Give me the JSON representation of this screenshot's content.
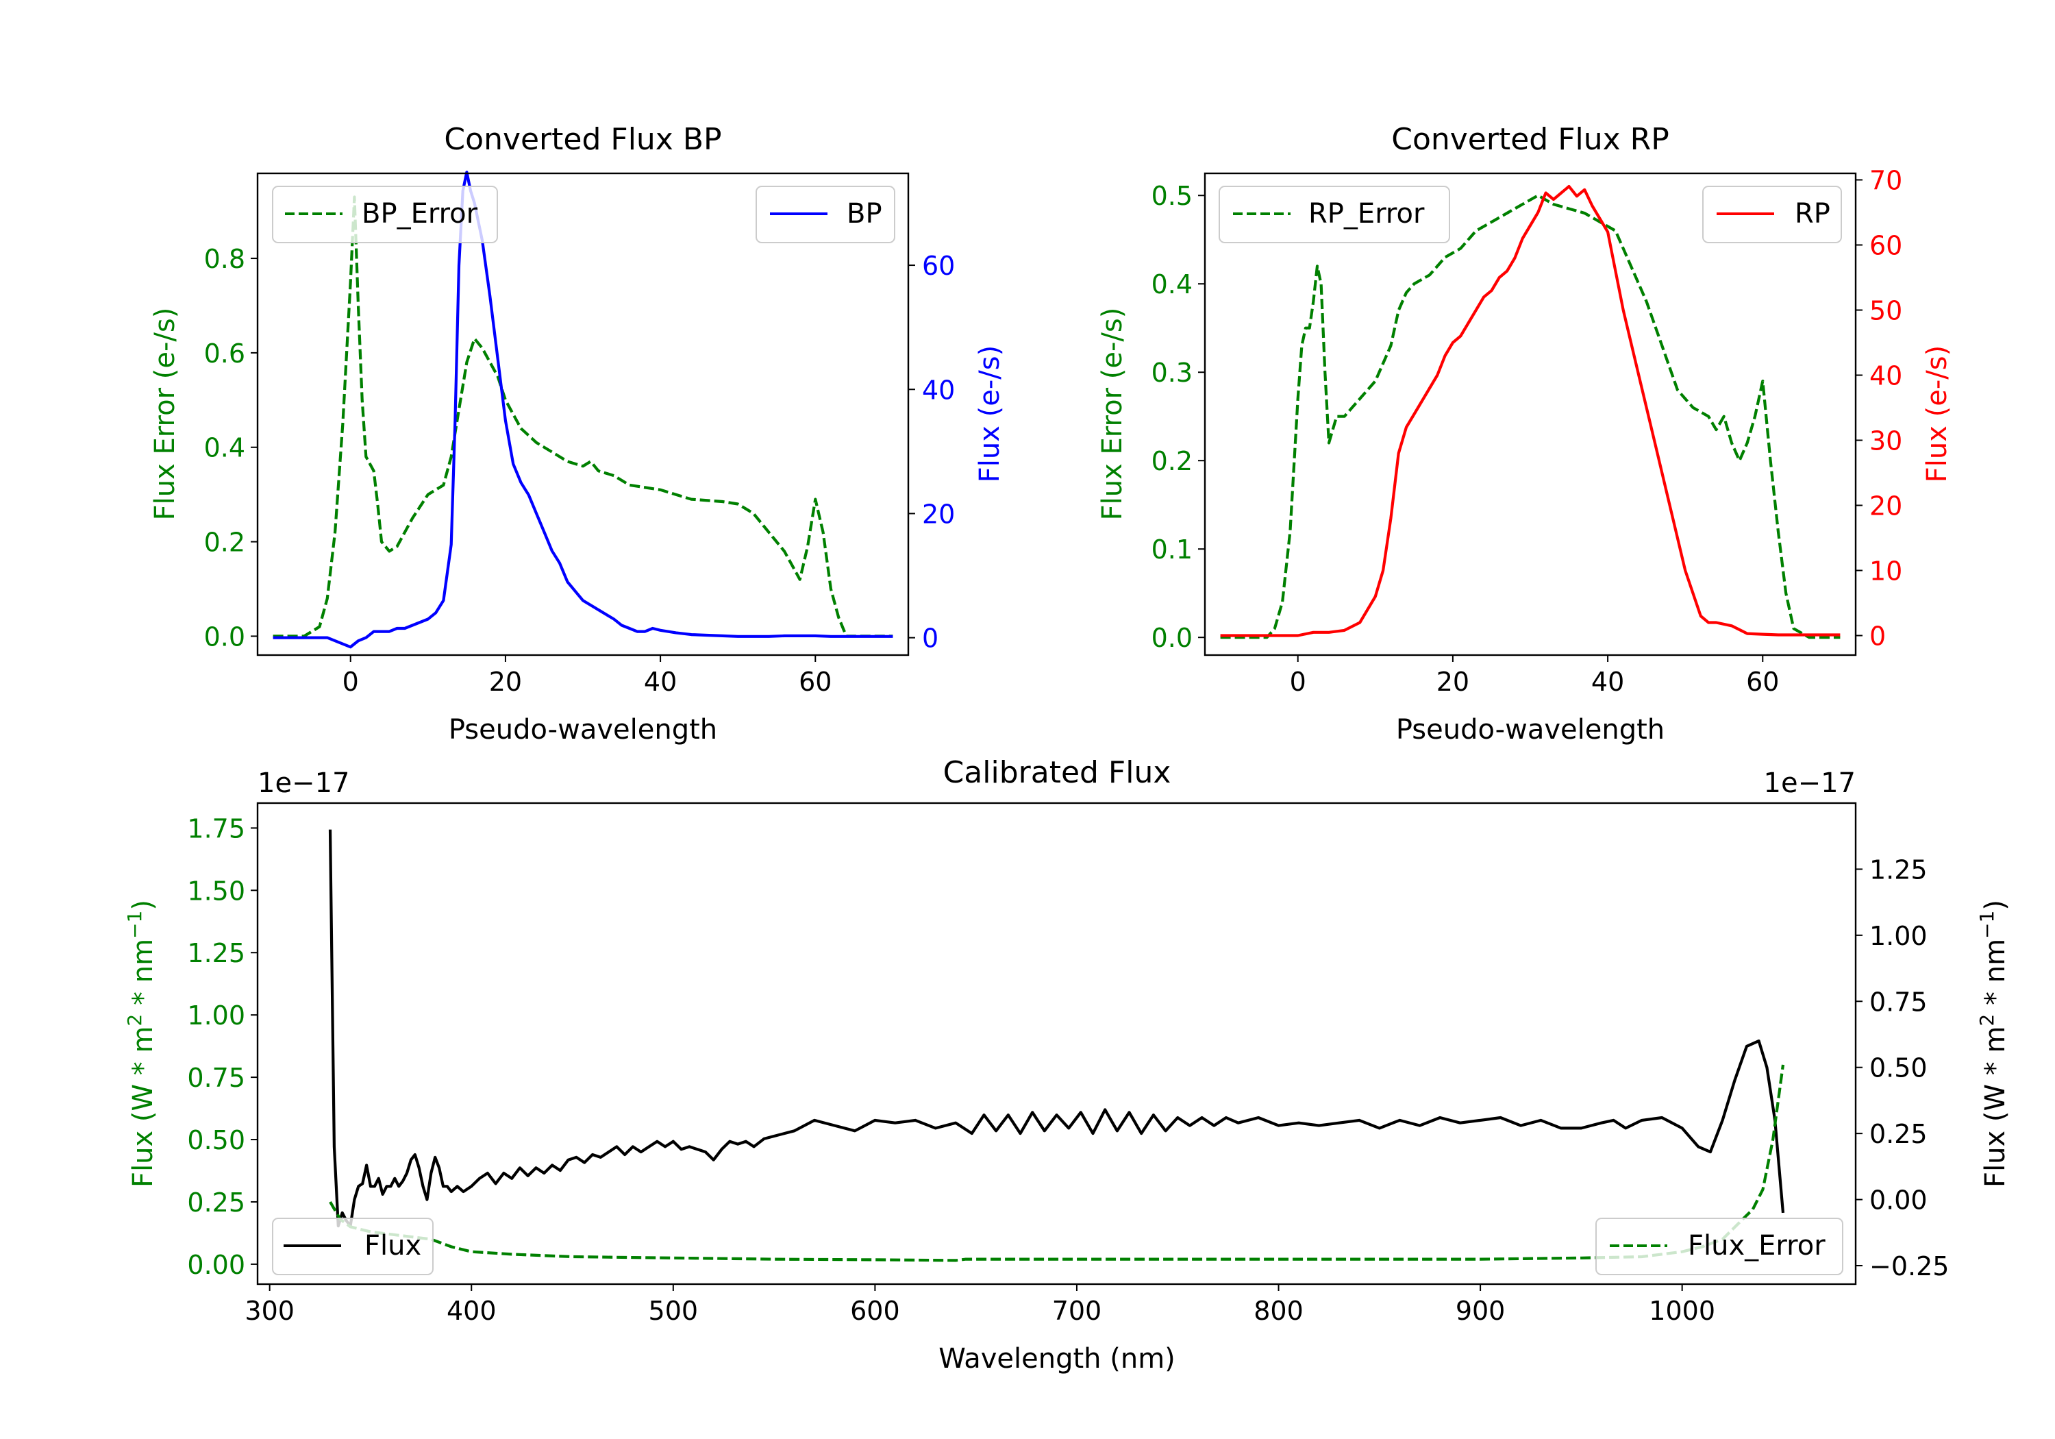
{
  "colors": {
    "bp": "#0000ff",
    "rp": "#ff0000",
    "error": "#008000",
    "flux": "#000000",
    "axis": "#000000",
    "legend_border": "#cccccc"
  },
  "chart_data": [
    {
      "id": "bp",
      "type": "line",
      "title": "Converted Flux BP",
      "xlabel": "Pseudo-wavelength",
      "xlim": [
        -12,
        72
      ],
      "xticks": [
        0,
        20,
        40,
        60
      ],
      "y_left": {
        "label": "Flux Error (e-/s)",
        "lim": [
          -0.04,
          0.98
        ],
        "ticks": [
          0.0,
          0.2,
          0.4,
          0.6,
          0.8
        ],
        "decimals": 1,
        "color": "#008000"
      },
      "y_right": {
        "label": "Flux (e-/s)",
        "lim": [
          -2.8,
          74.8
        ],
        "ticks": [
          0,
          20,
          40,
          60
        ],
        "decimals": 0,
        "color": "#0000ff"
      },
      "series": [
        {
          "name": "BP_Error",
          "axis": "left",
          "style": "dashed",
          "color": "#008000",
          "x": [
            -10,
            -8,
            -6,
            -4,
            -3,
            -2,
            -1,
            0,
            0.5,
            1,
            1.5,
            2,
            3,
            3.5,
            4,
            5,
            6,
            7,
            8,
            10,
            12,
            13,
            14,
            15,
            16,
            17,
            18,
            19,
            20,
            21,
            22,
            24,
            26,
            28,
            30,
            31,
            32,
            34,
            36,
            40,
            44,
            48,
            50,
            52,
            54,
            56,
            57,
            58,
            59,
            60,
            61,
            62,
            63,
            64,
            66,
            68,
            70
          ],
          "values": [
            0,
            0,
            0,
            0.02,
            0.08,
            0.22,
            0.45,
            0.75,
            0.93,
            0.7,
            0.5,
            0.38,
            0.35,
            0.28,
            0.2,
            0.18,
            0.19,
            0.22,
            0.25,
            0.3,
            0.32,
            0.38,
            0.48,
            0.58,
            0.63,
            0.61,
            0.58,
            0.55,
            0.5,
            0.47,
            0.44,
            0.41,
            0.39,
            0.37,
            0.36,
            0.37,
            0.35,
            0.34,
            0.32,
            0.31,
            0.29,
            0.285,
            0.28,
            0.26,
            0.22,
            0.18,
            0.15,
            0.12,
            0.19,
            0.29,
            0.22,
            0.1,
            0.04,
            0,
            0,
            0,
            0
          ]
        },
        {
          "name": "BP",
          "axis": "right",
          "style": "solid",
          "color": "#0000ff",
          "x": [
            -10,
            -6,
            -3,
            -1,
            0,
            1,
            2,
            3,
            4,
            5,
            6,
            7,
            8,
            9,
            10,
            11,
            12,
            13,
            13.5,
            14,
            14.5,
            15,
            15.5,
            16,
            17,
            18,
            19,
            20,
            21,
            22,
            23,
            24,
            25,
            26,
            27,
            28,
            30,
            32,
            34,
            35,
            36,
            37,
            38,
            39,
            40,
            42,
            44,
            46,
            48,
            50,
            52,
            54,
            56,
            58,
            60,
            62,
            64,
            66,
            68,
            70
          ],
          "values": [
            0,
            0,
            0,
            -1,
            -1.5,
            -0.5,
            0,
            1,
            1,
            1,
            1.5,
            1.5,
            2,
            2.5,
            3,
            4,
            6,
            15,
            35,
            60,
            72,
            75,
            72,
            70,
            64,
            55,
            45,
            35,
            28,
            25,
            23,
            20,
            17,
            14,
            12,
            9,
            6,
            4.5,
            3,
            2,
            1.5,
            1,
            1,
            1.5,
            1.2,
            0.8,
            0.5,
            0.4,
            0.3,
            0.2,
            0.2,
            0.2,
            0.3,
            0.3,
            0.3,
            0.2,
            0.2,
            0.2,
            0.2,
            0.2
          ]
        }
      ]
    },
    {
      "id": "rp",
      "type": "line",
      "title": "Converted Flux RP",
      "xlabel": "Pseudo-wavelength",
      "xlim": [
        -12,
        72
      ],
      "xticks": [
        0,
        20,
        40,
        60
      ],
      "y_left": {
        "label": "Flux Error (e-/s)",
        "lim": [
          -0.02,
          0.525
        ],
        "ticks": [
          0.0,
          0.1,
          0.2,
          0.3,
          0.4,
          0.5
        ],
        "decimals": 1,
        "color": "#008000"
      },
      "y_right": {
        "label": "Flux (e-/s)",
        "lim": [
          -3,
          71
        ],
        "ticks": [
          0,
          10,
          20,
          30,
          40,
          50,
          60,
          70
        ],
        "decimals": 0,
        "color": "#ff0000"
      },
      "series": [
        {
          "name": "RP_Error",
          "axis": "left",
          "style": "dashed",
          "color": "#008000",
          "x": [
            -10,
            -6,
            -4,
            -3,
            -2,
            -1,
            0,
            0.5,
            1,
            1.5,
            2,
            2.5,
            3,
            3.5,
            4,
            5,
            6,
            7,
            8,
            10,
            12,
            13,
            14,
            15,
            17,
            19,
            21,
            23,
            25,
            27,
            29,
            31,
            32,
            33,
            35,
            37,
            39,
            41,
            43,
            45,
            47,
            49,
            51,
            53,
            54,
            55,
            56,
            57,
            58,
            59,
            60,
            61,
            62,
            63,
            64,
            66,
            70
          ],
          "values": [
            0,
            0,
            0,
            0.01,
            0.04,
            0.12,
            0.27,
            0.33,
            0.35,
            0.35,
            0.38,
            0.42,
            0.4,
            0.3,
            0.22,
            0.25,
            0.25,
            0.26,
            0.27,
            0.29,
            0.33,
            0.37,
            0.39,
            0.4,
            0.41,
            0.43,
            0.44,
            0.46,
            0.47,
            0.48,
            0.49,
            0.5,
            0.495,
            0.49,
            0.485,
            0.48,
            0.47,
            0.46,
            0.42,
            0.38,
            0.33,
            0.28,
            0.26,
            0.25,
            0.235,
            0.25,
            0.22,
            0.2,
            0.22,
            0.25,
            0.29,
            0.2,
            0.12,
            0.05,
            0.01,
            0,
            0
          ]
        },
        {
          "name": "RP",
          "axis": "right",
          "style": "solid",
          "color": "#ff0000",
          "x": [
            -10,
            -6,
            -2,
            0,
            2,
            4,
            6,
            8,
            10,
            11,
            12,
            13,
            14,
            15,
            16,
            17,
            18,
            19,
            20,
            21,
            22,
            23,
            24,
            25,
            26,
            27,
            28,
            29,
            30,
            31,
            32,
            33,
            34,
            35,
            36,
            37,
            38,
            39,
            40,
            41,
            42,
            44,
            46,
            48,
            50,
            52,
            53,
            54,
            56,
            58,
            60,
            62,
            64,
            66,
            68,
            70
          ],
          "values": [
            0,
            0,
            0,
            0,
            0.5,
            0.5,
            0.8,
            2,
            6,
            10,
            18,
            28,
            32,
            34,
            36,
            38,
            40,
            43,
            45,
            46,
            48,
            50,
            52,
            53,
            55,
            56,
            58,
            61,
            63,
            65,
            68,
            67,
            68,
            69,
            67.5,
            68.5,
            66,
            64,
            62,
            56,
            50,
            40,
            30,
            20,
            10,
            3,
            2,
            2,
            1.5,
            0.3,
            0.2,
            0.1,
            0.1,
            0.1,
            0.1,
            0.1
          ]
        }
      ]
    },
    {
      "id": "cal",
      "type": "line",
      "title": "Calibrated Flux",
      "xlabel": "Wavelength (nm)",
      "xlim": [
        294,
        1086
      ],
      "xticks": [
        300,
        400,
        500,
        600,
        700,
        800,
        900,
        1000
      ],
      "y_left": {
        "label": "Flux (W * m^2 * nm^-1)",
        "offset_text": "1e−17",
        "lim": [
          -0.08,
          1.85
        ],
        "ticks": [
          0.0,
          0.25,
          0.5,
          0.75,
          1.0,
          1.25,
          1.5,
          1.75
        ],
        "decimals": 2,
        "color": "#008000"
      },
      "y_right": {
        "label": "Flux (W * m^2 * nm^-1)",
        "offset_text": "1e−17",
        "lim": [
          -0.32,
          1.5
        ],
        "ticks": [
          -0.25,
          0.0,
          0.25,
          0.5,
          0.75,
          1.0,
          1.25
        ],
        "decimals": 2,
        "color": "#000000"
      },
      "series": [
        {
          "name": "Flux",
          "axis": "right",
          "style": "solid",
          "color": "#000000",
          "x": [
            330,
            332,
            334,
            336,
            338,
            340,
            342,
            344,
            346,
            348,
            350,
            352,
            354,
            356,
            358,
            360,
            362,
            364,
            366,
            368,
            370,
            372,
            374,
            376,
            378,
            380,
            382,
            384,
            386,
            388,
            390,
            393,
            396,
            400,
            404,
            408,
            412,
            416,
            420,
            424,
            428,
            432,
            436,
            440,
            444,
            448,
            452,
            456,
            460,
            464,
            468,
            472,
            476,
            480,
            484,
            488,
            492,
            496,
            500,
            504,
            508,
            512,
            516,
            520,
            524,
            528,
            532,
            536,
            540,
            545,
            550,
            560,
            570,
            580,
            590,
            600,
            610,
            620,
            630,
            640,
            648,
            654,
            660,
            666,
            672,
            678,
            684,
            690,
            696,
            702,
            708,
            714,
            720,
            726,
            732,
            738,
            744,
            750,
            756,
            762,
            768,
            774,
            780,
            790,
            800,
            810,
            820,
            830,
            840,
            850,
            860,
            870,
            880,
            890,
            900,
            910,
            920,
            930,
            940,
            950,
            960,
            966,
            972,
            980,
            990,
            1000,
            1008,
            1014,
            1020,
            1026,
            1032,
            1038,
            1042,
            1046,
            1050
          ],
          "values": [
            1.4,
            0.2,
            -0.1,
            -0.05,
            -0.08,
            -0.1,
            0.0,
            0.05,
            0.06,
            0.13,
            0.05,
            0.05,
            0.08,
            0.02,
            0.05,
            0.05,
            0.08,
            0.05,
            0.07,
            0.1,
            0.15,
            0.17,
            0.12,
            0.05,
            0.0,
            0.1,
            0.16,
            0.12,
            0.05,
            0.05,
            0.03,
            0.05,
            0.03,
            0.05,
            0.08,
            0.1,
            0.06,
            0.1,
            0.08,
            0.12,
            0.09,
            0.12,
            0.1,
            0.13,
            0.11,
            0.15,
            0.16,
            0.14,
            0.17,
            0.16,
            0.18,
            0.2,
            0.17,
            0.2,
            0.18,
            0.2,
            0.22,
            0.2,
            0.22,
            0.19,
            0.2,
            0.19,
            0.18,
            0.15,
            0.19,
            0.22,
            0.21,
            0.22,
            0.2,
            0.23,
            0.24,
            0.26,
            0.3,
            0.28,
            0.26,
            0.3,
            0.29,
            0.3,
            0.27,
            0.29,
            0.25,
            0.32,
            0.26,
            0.32,
            0.25,
            0.33,
            0.26,
            0.32,
            0.27,
            0.33,
            0.25,
            0.34,
            0.26,
            0.33,
            0.25,
            0.32,
            0.26,
            0.31,
            0.28,
            0.31,
            0.28,
            0.31,
            0.29,
            0.31,
            0.28,
            0.29,
            0.28,
            0.29,
            0.3,
            0.27,
            0.3,
            0.28,
            0.31,
            0.29,
            0.3,
            0.31,
            0.28,
            0.3,
            0.27,
            0.27,
            0.29,
            0.3,
            0.27,
            0.3,
            0.31,
            0.27,
            0.2,
            0.18,
            0.3,
            0.45,
            0.58,
            0.6,
            0.5,
            0.3,
            -0.05
          ]
        },
        {
          "name": "Flux_Error",
          "axis": "left",
          "style": "dashed",
          "color": "#008000",
          "x": [
            330,
            335,
            340,
            345,
            350,
            360,
            370,
            380,
            390,
            400,
            420,
            450,
            500,
            550,
            600,
            640,
            645,
            700,
            800,
            900,
            950,
            980,
            1000,
            1010,
            1020,
            1030,
            1035,
            1040,
            1045,
            1050
          ],
          "values": [
            0.25,
            0.18,
            0.15,
            0.14,
            0.13,
            0.12,
            0.11,
            0.1,
            0.07,
            0.05,
            0.04,
            0.03,
            0.025,
            0.02,
            0.018,
            0.015,
            0.02,
            0.02,
            0.02,
            0.02,
            0.025,
            0.03,
            0.05,
            0.07,
            0.1,
            0.18,
            0.22,
            0.3,
            0.5,
            0.8
          ]
        }
      ]
    }
  ]
}
